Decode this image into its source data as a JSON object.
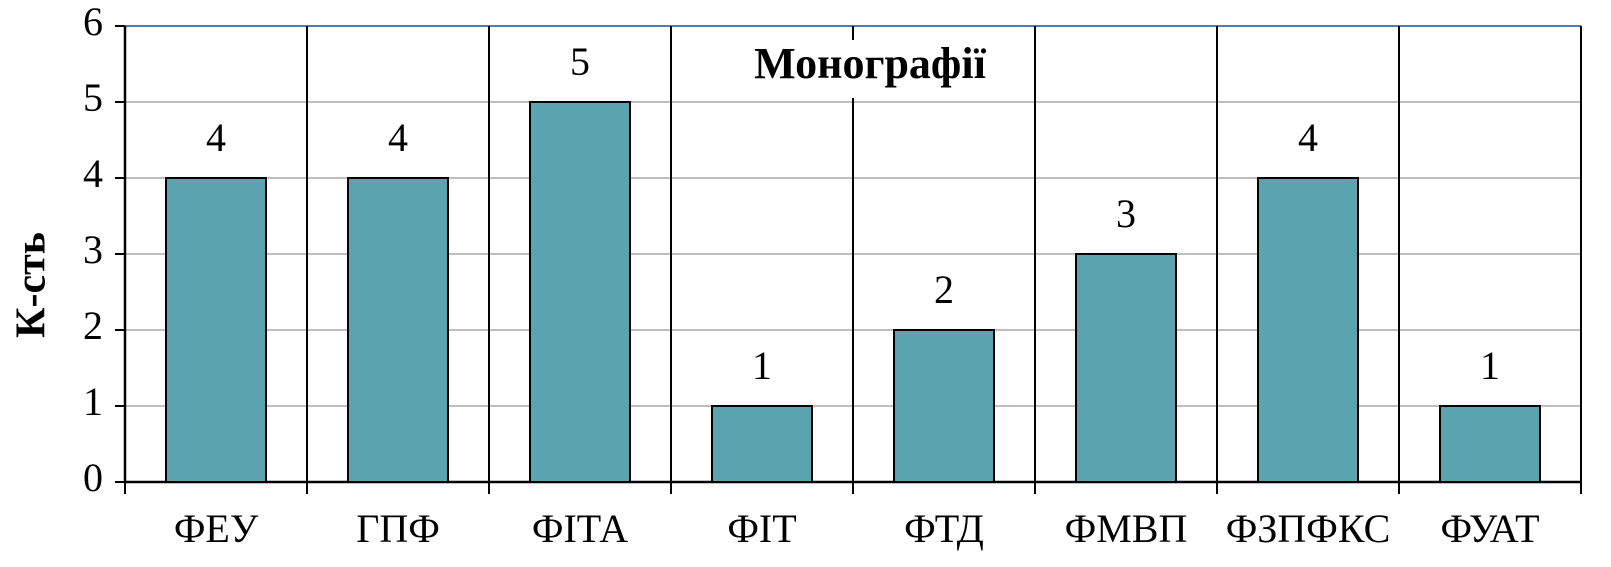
{
  "chart_data": {
    "type": "bar",
    "title": "Монографії",
    "y_label": "К-сть",
    "categories": [
      "ФЕУ",
      "ГПФ",
      "ФІТА",
      "ФІТ",
      "ФТД",
      "ФМВП",
      "ФЗПФКС",
      "ФУАТ"
    ],
    "values": [
      4,
      4,
      5,
      1,
      2,
      3,
      4,
      1
    ],
    "color": "#5ba3ae",
    "ylim": [
      0,
      6
    ],
    "yticks": [
      0,
      1,
      2,
      3,
      4,
      5,
      6
    ],
    "grid": true
  }
}
